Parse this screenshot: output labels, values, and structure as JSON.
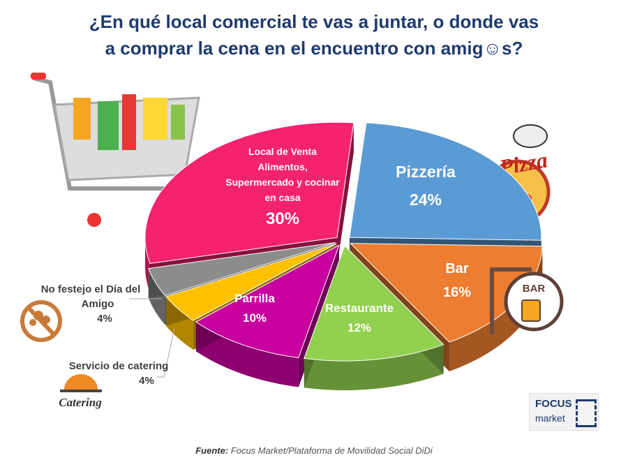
{
  "title_line1": "¿En qué local comercial te vas a juntar, o donde vas",
  "title_line2": "a comprar la cena en el encuentro con amig☺s?",
  "chart_data": {
    "type": "pie",
    "title": "¿En qué local comercial te vas a juntar, o donde vas a comprar la cena en el encuentro con amig☺s?",
    "categories": [
      "Pizzería",
      "Bar",
      "Restaurante",
      "Parrilla",
      "Servicio de catering",
      "No festejo el Día del Amigo",
      "Local de Venta Alimentos, Supermercado y cocinar en casa"
    ],
    "values": [
      24,
      16,
      12,
      10,
      4,
      4,
      30
    ],
    "value_labels": [
      "24%",
      "16%",
      "12%",
      "10%",
      "4%",
      "4%",
      "30%"
    ],
    "colors": [
      "#5b9bd5",
      "#ed7d31",
      "#92d050",
      "#c8009f",
      "#ffc000",
      "#8c8c8c",
      "#f5226f"
    ],
    "style": "3d-exploded"
  },
  "labels": {
    "pizzeria": "Pizzería",
    "bar": "Bar",
    "restaurante": "Restaurante",
    "parrilla": "Parrilla",
    "catering": "Servicio de catering",
    "nofestejo_1": "No festejo el Día del",
    "nofestejo_2": "Amigo",
    "local_1": "Local de Venta",
    "local_2": "Alimentos,",
    "local_3": "Supermercado y cocinar",
    "local_4": "en casa"
  },
  "icons": {
    "pizza_text": "Pizza",
    "bar_sign": "BAR",
    "catering_text": "Catering"
  },
  "source_label": "Fuente:",
  "source_text": "Focus Market/Plataforma de Movilidad Social DiDi",
  "logo": {
    "line1": "FOCUS",
    "line2": "market"
  }
}
